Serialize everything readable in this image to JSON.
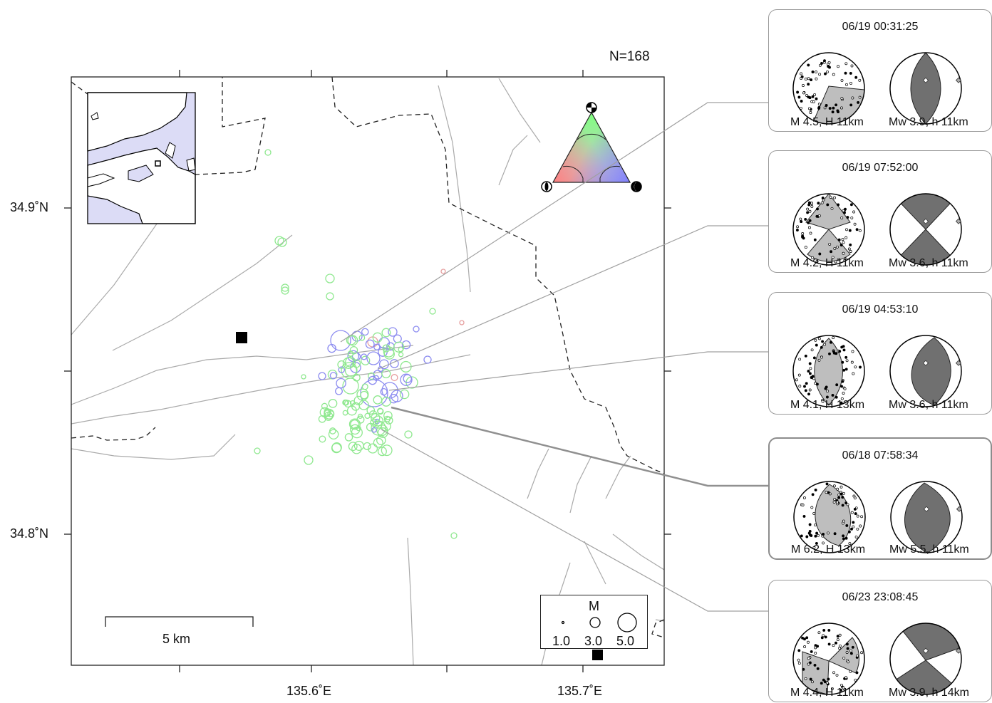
{
  "count_label": "N=168",
  "axes": {
    "lat_ticks": [
      "34.9˚N",
      "34.8˚N"
    ],
    "lon_ticks": [
      "135.6˚E",
      "135.7˚E"
    ]
  },
  "scale_bar": {
    "label": "5 km"
  },
  "legend": {
    "title": "M",
    "values": [
      "1.0",
      "3.0",
      "5.0"
    ]
  },
  "ternary": {
    "colors": {
      "normal": "#ff8080",
      "strike_slip": "#80ff80",
      "reverse": "#8080ff"
    }
  },
  "colors": {
    "strike_slip": "#8fe88f",
    "reverse": "#8c8cf0",
    "normal": "#e6a0a0",
    "fault": "#aaaaaa",
    "inset_sea": "#dcdcf6",
    "beachball_fill": "#bebebe",
    "mt_fill": "#707070"
  },
  "events": [
    {
      "time": "06/19 00:31:25",
      "mag": "M 4.5, H 11km",
      "mw": "Mw 3.9, h 11km"
    },
    {
      "time": "06/19 07:52:00",
      "mag": "M 4.2, H 11km",
      "mw": "Mw 3.6, h 11km"
    },
    {
      "time": "06/19 04:53:10",
      "mag": "M 4.1, H 13km",
      "mw": "Mw 3.6, h 11km"
    },
    {
      "time": "06/18 07:58:34",
      "mag": "M 6.2, H 13km",
      "mw": "Mw 5.5, h 11km"
    },
    {
      "time": "06/23 23:08:45",
      "mag": "M 4.4, H 11km",
      "mw": "Mw 3.9, h 14km"
    }
  ]
}
